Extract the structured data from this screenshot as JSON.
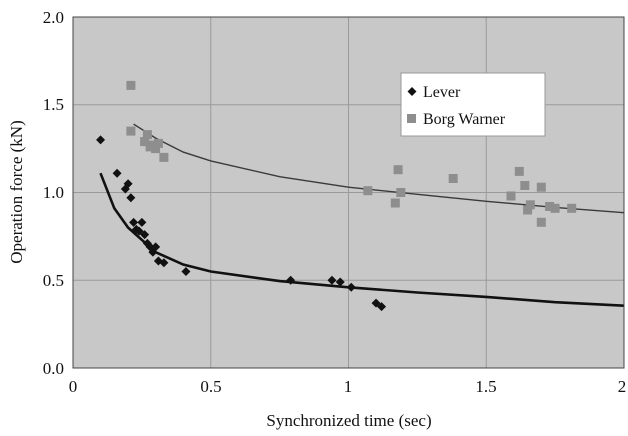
{
  "chart_data": {
    "type": "scatter",
    "xlabel": "Synchronized time (sec)",
    "ylabel": "Operation force (kN)",
    "xlim": [
      0,
      2
    ],
    "ylim": [
      0,
      2.0
    ],
    "x_ticks": [
      "0",
      "0.5",
      "1",
      "1.5",
      "2"
    ],
    "y_ticks": [
      "0.0",
      "0.5",
      "1.0",
      "1.5",
      "2.0"
    ],
    "grid": true,
    "legend_position": "top-right",
    "colors": {
      "plot_background": "#c8c8c8",
      "grid": "#9a9a9a",
      "lever": "#111111",
      "borg_warner": "#8e8e8e",
      "borg_warner_curve": "#3a3a3a"
    },
    "series": [
      {
        "name": "Lever",
        "marker": "diamond",
        "points": [
          [
            0.1,
            1.3
          ],
          [
            0.16,
            1.11
          ],
          [
            0.19,
            1.02
          ],
          [
            0.2,
            1.05
          ],
          [
            0.21,
            0.97
          ],
          [
            0.22,
            0.83
          ],
          [
            0.23,
            0.79
          ],
          [
            0.24,
            0.78
          ],
          [
            0.25,
            0.83
          ],
          [
            0.26,
            0.76
          ],
          [
            0.27,
            0.71
          ],
          [
            0.28,
            0.69
          ],
          [
            0.29,
            0.66
          ],
          [
            0.3,
            0.69
          ],
          [
            0.31,
            0.61
          ],
          [
            0.33,
            0.6
          ],
          [
            0.41,
            0.55
          ],
          [
            0.79,
            0.5
          ],
          [
            0.94,
            0.5
          ],
          [
            0.97,
            0.49
          ],
          [
            1.01,
            0.46
          ],
          [
            1.1,
            0.37
          ],
          [
            1.12,
            0.35
          ]
        ],
        "fit_curve": [
          [
            0.1,
            1.11
          ],
          [
            0.15,
            0.91
          ],
          [
            0.2,
            0.8
          ],
          [
            0.3,
            0.66
          ],
          [
            0.4,
            0.59
          ],
          [
            0.5,
            0.55
          ],
          [
            0.75,
            0.495
          ],
          [
            1.0,
            0.46
          ],
          [
            1.25,
            0.43
          ],
          [
            1.5,
            0.405
          ],
          [
            1.75,
            0.375
          ],
          [
            2.0,
            0.355
          ]
        ]
      },
      {
        "name": "Borg Warner",
        "marker": "square",
        "points": [
          [
            0.21,
            1.61
          ],
          [
            0.21,
            1.35
          ],
          [
            0.26,
            1.29
          ],
          [
            0.27,
            1.33
          ],
          [
            0.28,
            1.26
          ],
          [
            0.29,
            1.27
          ],
          [
            0.3,
            1.25
          ],
          [
            0.31,
            1.28
          ],
          [
            0.33,
            1.2
          ],
          [
            1.07,
            1.01
          ],
          [
            1.17,
            0.94
          ],
          [
            1.18,
            1.13
          ],
          [
            1.19,
            1.0
          ],
          [
            1.38,
            1.08
          ],
          [
            1.59,
            0.98
          ],
          [
            1.62,
            1.12
          ],
          [
            1.64,
            1.04
          ],
          [
            1.65,
            0.9
          ],
          [
            1.66,
            0.93
          ],
          [
            1.7,
            1.03
          ],
          [
            1.7,
            0.83
          ],
          [
            1.73,
            0.92
          ],
          [
            1.75,
            0.91
          ],
          [
            1.81,
            0.91
          ]
        ],
        "fit_curve": [
          [
            0.22,
            1.39
          ],
          [
            0.3,
            1.31
          ],
          [
            0.4,
            1.23
          ],
          [
            0.5,
            1.18
          ],
          [
            0.75,
            1.09
          ],
          [
            1.0,
            1.03
          ],
          [
            1.25,
            0.99
          ],
          [
            1.5,
            0.95
          ],
          [
            1.75,
            0.915
          ],
          [
            2.0,
            0.885
          ]
        ]
      }
    ]
  }
}
